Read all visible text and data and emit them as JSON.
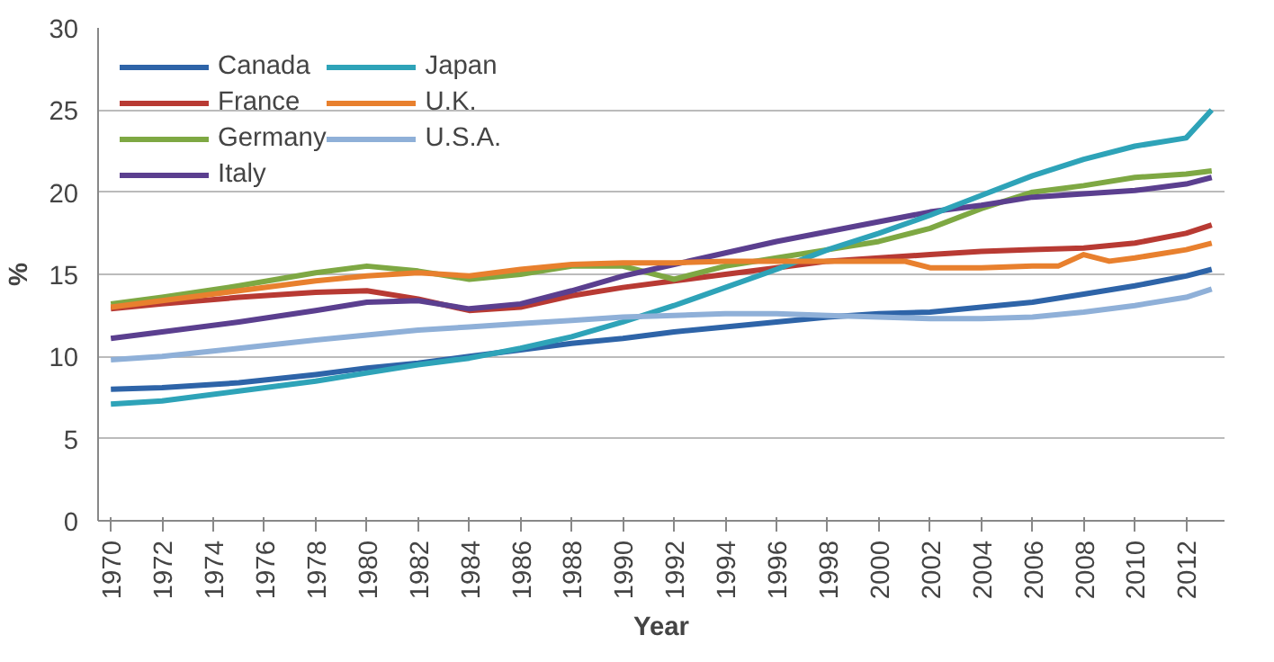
{
  "chart_data": {
    "type": "line",
    "xlabel": "Year",
    "ylabel": "%",
    "x": [
      1970,
      1972,
      1975,
      1978,
      1980,
      1982,
      1984,
      1986,
      1988,
      1990,
      1992,
      1994,
      1996,
      1998,
      2000,
      2002,
      2004,
      2006,
      2008,
      2010,
      2012,
      2013
    ],
    "series": [
      {
        "name": "Canada",
        "color": "#2e64a8",
        "values": [
          8.0,
          8.1,
          8.4,
          8.9,
          9.3,
          9.6,
          10.0,
          10.4,
          10.8,
          11.1,
          11.5,
          11.8,
          12.1,
          12.4,
          12.6,
          12.7,
          13.0,
          13.3,
          13.8,
          14.3,
          14.9,
          15.3
        ]
      },
      {
        "name": "France",
        "color": "#b83a33",
        "values": [
          12.9,
          13.2,
          13.6,
          13.9,
          14.0,
          13.5,
          12.8,
          13.0,
          13.7,
          14.2,
          14.6,
          15.0,
          15.4,
          15.8,
          16.0,
          16.2,
          16.4,
          16.5,
          16.6,
          16.9,
          17.5,
          18.0
        ]
      },
      {
        "name": "Germany",
        "color": "#7ea843",
        "values": [
          13.2,
          13.6,
          14.3,
          15.1,
          15.5,
          15.2,
          14.7,
          15.0,
          15.5,
          15.5,
          14.7,
          15.5,
          16.0,
          16.5,
          17.0,
          17.8,
          19.0,
          20.0,
          20.4,
          20.9,
          21.1,
          21.3
        ]
      },
      {
        "name": "Italy",
        "color": "#5b3f8f",
        "values": [
          11.1,
          11.5,
          12.1,
          12.8,
          13.3,
          13.4,
          12.9,
          13.2,
          14.0,
          14.9,
          15.6,
          16.3,
          17.0,
          17.6,
          18.2,
          18.8,
          19.2,
          19.7,
          19.9,
          20.1,
          20.5,
          20.9
        ]
      },
      {
        "name": "Japan",
        "color": "#2ea3b8",
        "values": [
          7.1,
          7.3,
          7.9,
          8.5,
          9.0,
          9.5,
          9.9,
          10.5,
          11.2,
          12.1,
          13.1,
          14.2,
          15.3,
          16.5,
          17.5,
          18.6,
          19.8,
          21.0,
          22.0,
          22.8,
          23.3,
          25.0
        ]
      },
      {
        "name": "U.K.",
        "color": "#e8802e",
        "x": [
          1970,
          1972,
          1975,
          1978,
          1980,
          1982,
          1984,
          1986,
          1988,
          1990,
          1992,
          1994,
          1996,
          1998,
          2000,
          2001,
          2002,
          2004,
          2006,
          2007,
          2008,
          2009,
          2010,
          2012,
          2013
        ],
        "values": [
          13.0,
          13.4,
          14.0,
          14.6,
          14.9,
          15.1,
          14.9,
          15.3,
          15.6,
          15.7,
          15.7,
          15.8,
          15.8,
          15.8,
          15.8,
          15.8,
          15.4,
          15.4,
          15.5,
          15.5,
          16.2,
          15.8,
          16.0,
          16.5,
          16.9
        ]
      },
      {
        "name": "U.S.A.",
        "color": "#8fb0d8",
        "values": [
          9.8,
          10.0,
          10.5,
          11.0,
          11.3,
          11.6,
          11.8,
          12.0,
          12.2,
          12.4,
          12.5,
          12.6,
          12.6,
          12.5,
          12.4,
          12.3,
          12.3,
          12.4,
          12.7,
          13.1,
          13.6,
          14.1
        ]
      }
    ],
    "xlim": [
      1969.5,
      2013.5
    ],
    "xticks": [
      1970,
      1972,
      1974,
      1976,
      1978,
      1980,
      1982,
      1984,
      1986,
      1988,
      1990,
      1992,
      1994,
      1996,
      1998,
      2000,
      2002,
      2004,
      2006,
      2008,
      2010,
      2012
    ],
    "ylim": [
      0,
      30
    ],
    "yticks": [
      0,
      5,
      10,
      15,
      20,
      25,
      30
    ],
    "grid": "y",
    "legend": "top left",
    "line_style": "solid",
    "marker": "none"
  }
}
